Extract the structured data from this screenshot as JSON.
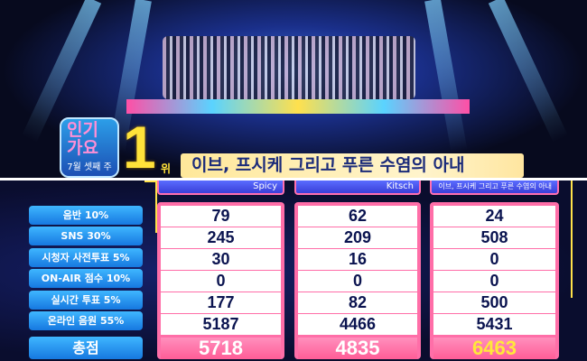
{
  "broadcast": {
    "logo_text": "인기가요",
    "week": "7월 셋째 주",
    "rank_number": "1",
    "rank_unit": "위",
    "winning_song": "이브, 프시케 그리고 푸른 수염의 아내"
  },
  "scoreboard": {
    "categories": [
      "음반 10%",
      "SNS 30%",
      "시청자 사전투표 5%",
      "ON-AIR 점수 10%",
      "실시간 투표 5%",
      "온라인 음원 55%"
    ],
    "total_label": "총점",
    "songs": [
      {
        "title": "Spicy",
        "scores": [
          "79",
          "245",
          "30",
          "0",
          "177",
          "5187"
        ],
        "total": "5718",
        "total_color": "#ffffff"
      },
      {
        "title": "Kitsch",
        "scores": [
          "62",
          "209",
          "16",
          "0",
          "82",
          "4466"
        ],
        "total": "4835",
        "total_color": "#ffffff"
      },
      {
        "title": "이브, 프시케 그리고 푸른 수염의 아내",
        "scores": [
          "24",
          "508",
          "0",
          "0",
          "500",
          "5431"
        ],
        "total": "6463",
        "total_color": "#ffe83a"
      }
    ]
  },
  "colors": {
    "accent_pink": "#ff6ea8",
    "label_blue": "#1678e0",
    "winner_yellow": "#ffe83a"
  }
}
